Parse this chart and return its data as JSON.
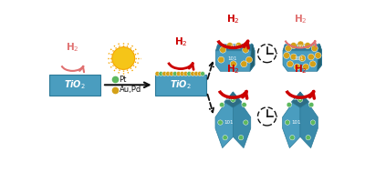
{
  "bg_color": "#ffffff",
  "tio2_color": "#4a9dbf",
  "tio2_dark": "#2d7a99",
  "tio2_right": "#3a8aaa",
  "sun_color": "#f5c518",
  "sun_ray_color": "#f5a500",
  "pt_color": "#5db85d",
  "au_pd_color": "#d4a017",
  "h2_color": "#cc0000",
  "h2_light_color": "#e07070",
  "arrow_color": "#111111",
  "clock_color": "#222222"
}
